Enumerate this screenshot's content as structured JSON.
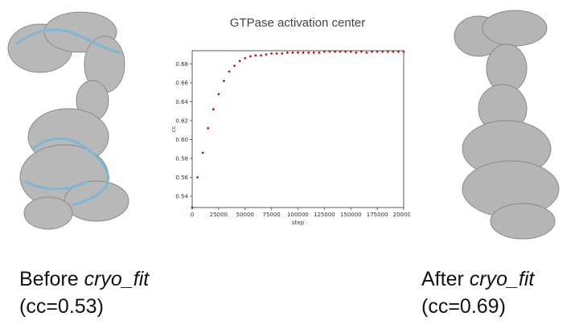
{
  "chart_data": {
    "type": "scatter",
    "title": "GTPase activation center",
    "xlabel": "step",
    "ylabel": "cc",
    "xlim": [
      0,
      200000
    ],
    "ylim": [
      0.528,
      0.694
    ],
    "xticks": [
      0,
      25000,
      50000,
      75000,
      100000,
      125000,
      150000,
      175000,
      200000
    ],
    "yticks": [
      0.54,
      0.56,
      0.58,
      0.6,
      0.62,
      0.64,
      0.66,
      0.68
    ],
    "grid": false,
    "marker_color": "#cc1111",
    "x": [
      0,
      5000,
      10000,
      15000,
      20000,
      25000,
      30000,
      35000,
      40000,
      45000,
      50000,
      55000,
      60000,
      65000,
      70000,
      75000,
      80000,
      85000,
      90000,
      95000,
      100000,
      105000,
      110000,
      115000,
      120000,
      125000,
      130000,
      135000,
      140000,
      145000,
      150000,
      155000,
      160000,
      165000,
      170000,
      175000,
      180000,
      185000,
      190000,
      195000,
      200000
    ],
    "y": [
      0.528,
      0.56,
      0.586,
      0.612,
      0.632,
      0.648,
      0.662,
      0.672,
      0.678,
      0.683,
      0.686,
      0.688,
      0.689,
      0.689,
      0.69,
      0.691,
      0.691,
      0.691,
      0.692,
      0.692,
      0.692,
      0.692,
      0.692,
      0.692,
      0.692,
      0.693,
      0.693,
      0.693,
      0.693,
      0.693,
      0.693,
      0.692,
      0.693,
      0.692,
      0.693,
      0.693,
      0.693,
      0.693,
      0.693,
      0.693,
      0.693
    ]
  },
  "captions": {
    "before": {
      "prefix": "Before ",
      "tool": "cryo_fit",
      "cc": "(cc=0.53)"
    },
    "after": {
      "prefix": "After ",
      "tool": "cryo_fit",
      "cc": "(cc=0.69)"
    }
  }
}
